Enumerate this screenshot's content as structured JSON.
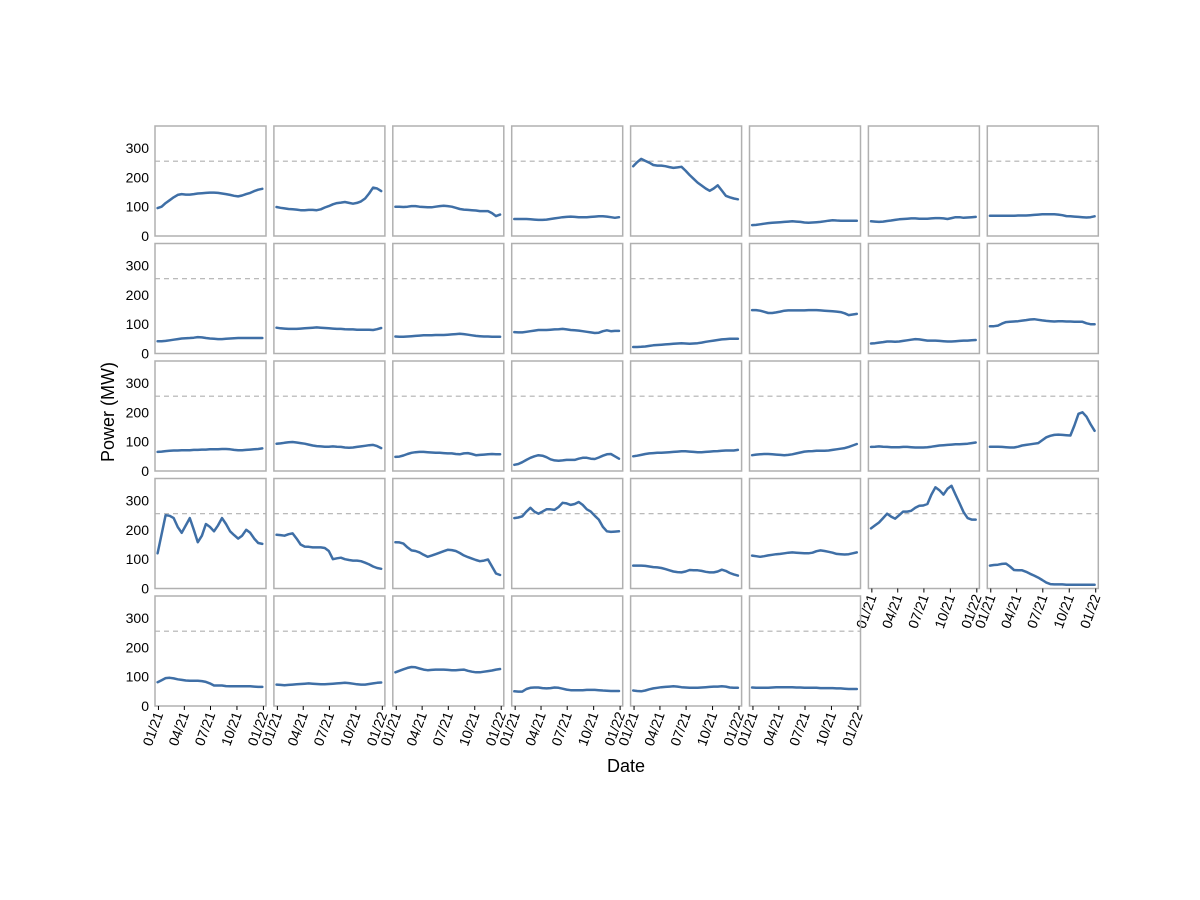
{
  "chart_data": {
    "type": "line",
    "layout": "small-multiples",
    "rows": 5,
    "cols": 8,
    "xlabel": "Date",
    "ylabel": "Power (MW)",
    "ylim": [
      0,
      375
    ],
    "yticks": [
      0,
      100,
      200,
      300
    ],
    "x_ticks": [
      "2021-01-01",
      "2021-04-01",
      "2021-07-01",
      "2021-10-01",
      "2022-01-01"
    ],
    "x_tick_labels": [
      "01/21",
      "04/21",
      "07/21",
      "10/21",
      "01/22"
    ],
    "xlim": [
      "2020-12-20",
      "2022-01-10"
    ],
    "x": [
      "2020-12-29",
      "2021-01-12",
      "2021-01-26",
      "2021-02-09",
      "2021-02-23",
      "2021-03-09",
      "2021-03-23",
      "2021-04-06",
      "2021-04-20",
      "2021-05-04",
      "2021-05-18",
      "2021-06-01",
      "2021-06-15",
      "2021-06-29",
      "2021-07-13",
      "2021-07-27",
      "2021-08-10",
      "2021-08-24",
      "2021-09-07",
      "2021-09-21",
      "2021-10-05",
      "2021-10-19",
      "2021-11-02",
      "2021-11-16",
      "2021-11-30",
      "2021-12-14",
      "2021-12-28"
    ],
    "reference_line": 255,
    "line_color": "#3f6fa6",
    "reference_color": "#b0b0b0",
    "panel_border_color": "#b0b0b0",
    "panels": [
      {
        "row": 0,
        "col": 0,
        "values": [
          95,
          100,
          112,
          122,
          132,
          140,
          143,
          141,
          141,
          143,
          145,
          146,
          147,
          148,
          148,
          147,
          145,
          143,
          140,
          137,
          135,
          138,
          143,
          147,
          153,
          158,
          161
        ]
      },
      {
        "row": 0,
        "col": 1,
        "values": [
          99,
          96,
          94,
          92,
          91,
          90,
          88,
          88,
          89,
          89,
          88,
          91,
          97,
          102,
          108,
          112,
          114,
          116,
          113,
          110,
          113,
          118,
          128,
          145,
          165,
          162,
          153
        ]
      },
      {
        "row": 0,
        "col": 2,
        "values": [
          100,
          100,
          99,
          100,
          102,
          102,
          100,
          99,
          98,
          98,
          100,
          102,
          103,
          102,
          100,
          96,
          92,
          90,
          89,
          88,
          87,
          85,
          85,
          85,
          78,
          68,
          73
        ]
      },
      {
        "row": 0,
        "col": 3,
        "values": [
          58,
          58,
          58,
          58,
          57,
          56,
          55,
          55,
          56,
          58,
          60,
          62,
          64,
          65,
          66,
          65,
          64,
          64,
          64,
          65,
          66,
          67,
          67,
          66,
          64,
          62,
          64
        ]
      },
      {
        "row": 0,
        "col": 4,
        "values": [
          238,
          252,
          263,
          256,
          250,
          242,
          240,
          240,
          238,
          235,
          232,
          234,
          236,
          223,
          208,
          195,
          182,
          172,
          162,
          154,
          162,
          173,
          155,
          137,
          132,
          128,
          125
        ]
      },
      {
        "row": 0,
        "col": 5,
        "values": [
          37,
          38,
          40,
          42,
          44,
          45,
          46,
          47,
          48,
          49,
          50,
          49,
          48,
          46,
          45,
          46,
          47,
          48,
          50,
          52,
          54,
          53,
          52,
          52,
          52,
          52,
          52
        ]
      },
      {
        "row": 0,
        "col": 6,
        "values": [
          50,
          49,
          48,
          49,
          51,
          53,
          55,
          57,
          58,
          59,
          60,
          60,
          59,
          59,
          59,
          60,
          61,
          61,
          60,
          58,
          61,
          64,
          64,
          62,
          63,
          64,
          65
        ]
      },
      {
        "row": 0,
        "col": 7,
        "values": [
          69,
          69,
          69,
          69,
          69,
          69,
          69,
          70,
          70,
          70,
          71,
          72,
          73,
          74,
          74,
          74,
          74,
          73,
          71,
          68,
          67,
          66,
          65,
          64,
          63,
          64,
          67
        ]
      },
      {
        "row": 1,
        "col": 0,
        "values": [
          42,
          42,
          43,
          45,
          47,
          49,
          51,
          52,
          53,
          54,
          56,
          55,
          53,
          51,
          50,
          49,
          49,
          50,
          51,
          52,
          53,
          53,
          53,
          53,
          53,
          53,
          53
        ]
      },
      {
        "row": 1,
        "col": 1,
        "values": [
          88,
          86,
          85,
          84,
          84,
          84,
          85,
          86,
          87,
          88,
          89,
          88,
          87,
          86,
          85,
          84,
          84,
          83,
          82,
          82,
          81,
          81,
          81,
          81,
          80,
          83,
          87
        ]
      },
      {
        "row": 1,
        "col": 2,
        "values": [
          58,
          57,
          57,
          58,
          59,
          60,
          61,
          62,
          62,
          62,
          63,
          63,
          63,
          64,
          65,
          66,
          67,
          66,
          64,
          62,
          60,
          59,
          58,
          58,
          57,
          57,
          57
        ]
      },
      {
        "row": 1,
        "col": 3,
        "values": [
          73,
          72,
          72,
          74,
          76,
          78,
          80,
          80,
          80,
          81,
          82,
          83,
          84,
          82,
          80,
          79,
          78,
          76,
          74,
          72,
          70,
          71,
          76,
          79,
          76,
          77,
          77
        ]
      },
      {
        "row": 1,
        "col": 4,
        "values": [
          22,
          22,
          23,
          24,
          26,
          28,
          29,
          30,
          31,
          32,
          33,
          34,
          35,
          34,
          33,
          34,
          35,
          37,
          40,
          42,
          44,
          46,
          48,
          49,
          50,
          50,
          50
        ]
      },
      {
        "row": 1,
        "col": 5,
        "values": [
          148,
          148,
          146,
          142,
          138,
          138,
          140,
          143,
          146,
          147,
          147,
          147,
          147,
          147,
          148,
          148,
          148,
          147,
          146,
          145,
          144,
          143,
          141,
          137,
          131,
          133,
          135
        ]
      },
      {
        "row": 1,
        "col": 6,
        "values": [
          34,
          35,
          37,
          39,
          41,
          41,
          40,
          41,
          43,
          45,
          47,
          49,
          48,
          46,
          44,
          44,
          44,
          43,
          42,
          41,
          41,
          42,
          43,
          44,
          44,
          45,
          46
        ]
      },
      {
        "row": 1,
        "col": 7,
        "values": [
          93,
          93,
          95,
          102,
          107,
          108,
          109,
          110,
          112,
          114,
          116,
          117,
          115,
          113,
          111,
          110,
          109,
          110,
          110,
          109,
          109,
          108,
          108,
          108,
          103,
          100,
          100
        ]
      },
      {
        "row": 2,
        "col": 0,
        "values": [
          65,
          66,
          68,
          69,
          70,
          70,
          71,
          71,
          71,
          72,
          72,
          73,
          73,
          74,
          74,
          74,
          75,
          75,
          74,
          72,
          71,
          71,
          72,
          73,
          74,
          75,
          77
        ]
      },
      {
        "row": 2,
        "col": 1,
        "values": [
          93,
          94,
          96,
          98,
          99,
          97,
          95,
          93,
          90,
          87,
          85,
          84,
          83,
          83,
          84,
          83,
          82,
          80,
          79,
          80,
          82,
          84,
          86,
          88,
          89,
          85,
          78
        ]
      },
      {
        "row": 2,
        "col": 2,
        "values": [
          48,
          49,
          53,
          58,
          62,
          64,
          65,
          65,
          64,
          63,
          62,
          62,
          61,
          60,
          60,
          58,
          57,
          60,
          61,
          58,
          54,
          55,
          56,
          57,
          58,
          57,
          57
        ]
      },
      {
        "row": 2,
        "col": 3,
        "values": [
          21,
          24,
          30,
          38,
          45,
          50,
          54,
          52,
          47,
          40,
          36,
          35,
          36,
          38,
          38,
          38,
          42,
          45,
          45,
          42,
          41,
          46,
          52,
          57,
          58,
          50,
          42
        ]
      },
      {
        "row": 2,
        "col": 4,
        "values": [
          50,
          52,
          55,
          58,
          60,
          61,
          62,
          62,
          63,
          64,
          65,
          66,
          67,
          67,
          66,
          65,
          64,
          64,
          65,
          66,
          67,
          68,
          69,
          70,
          70,
          70,
          72
        ]
      },
      {
        "row": 2,
        "col": 5,
        "values": [
          54,
          56,
          57,
          58,
          58,
          57,
          56,
          55,
          54,
          55,
          57,
          60,
          63,
          66,
          67,
          68,
          69,
          69,
          69,
          70,
          72,
          74,
          76,
          78,
          82,
          87,
          92
        ]
      },
      {
        "row": 2,
        "col": 6,
        "values": [
          82,
          83,
          84,
          83,
          82,
          81,
          81,
          81,
          82,
          82,
          81,
          80,
          80,
          80,
          81,
          83,
          85,
          87,
          88,
          89,
          90,
          91,
          91,
          92,
          93,
          95,
          97
        ]
      },
      {
        "row": 2,
        "col": 7,
        "values": [
          83,
          83,
          83,
          82,
          81,
          80,
          80,
          83,
          87,
          89,
          91,
          93,
          95,
          105,
          115,
          120,
          123,
          124,
          123,
          122,
          121,
          155,
          195,
          200,
          185,
          160,
          137
        ]
      },
      {
        "row": 3,
        "col": 0,
        "values": [
          120,
          185,
          250,
          248,
          240,
          210,
          190,
          215,
          240,
          200,
          158,
          180,
          220,
          210,
          195,
          215,
          240,
          220,
          195,
          182,
          170,
          180,
          200,
          190,
          170,
          155,
          152
        ]
      },
      {
        "row": 3,
        "col": 1,
        "values": [
          183,
          182,
          180,
          185,
          188,
          170,
          150,
          143,
          142,
          140,
          140,
          140,
          138,
          128,
          100,
          103,
          105,
          100,
          97,
          95,
          95,
          93,
          88,
          82,
          75,
          70,
          67
        ]
      },
      {
        "row": 3,
        "col": 2,
        "values": [
          158,
          157,
          153,
          140,
          130,
          128,
          123,
          115,
          108,
          112,
          117,
          122,
          127,
          132,
          131,
          128,
          121,
          113,
          107,
          102,
          97,
          93,
          95,
          99,
          75,
          51,
          46
        ]
      },
      {
        "row": 3,
        "col": 3,
        "values": [
          240,
          242,
          246,
          262,
          275,
          262,
          255,
          262,
          270,
          270,
          268,
          278,
          292,
          290,
          285,
          288,
          295,
          285,
          270,
          262,
          248,
          235,
          210,
          195,
          193,
          194,
          195
        ]
      },
      {
        "row": 3,
        "col": 4,
        "values": [
          78,
          78,
          78,
          77,
          75,
          73,
          72,
          70,
          66,
          62,
          58,
          56,
          55,
          58,
          63,
          62,
          62,
          60,
          57,
          55,
          55,
          58,
          64,
          60,
          53,
          48,
          44
        ]
      },
      {
        "row": 3,
        "col": 5,
        "values": [
          112,
          110,
          108,
          110,
          113,
          115,
          117,
          118,
          120,
          122,
          123,
          122,
          121,
          120,
          120,
          122,
          127,
          130,
          128,
          125,
          122,
          118,
          117,
          116,
          117,
          120,
          123
        ]
      },
      {
        "row": 3,
        "col": 6,
        "values": [
          205,
          215,
          225,
          240,
          255,
          245,
          238,
          250,
          262,
          262,
          265,
          275,
          282,
          283,
          288,
          320,
          345,
          335,
          320,
          340,
          350,
          320,
          290,
          260,
          240,
          235,
          235
        ]
      },
      {
        "row": 3,
        "col": 7,
        "values": [
          78,
          80,
          81,
          84,
          85,
          75,
          63,
          62,
          62,
          57,
          50,
          44,
          37,
          29,
          20,
          15,
          14,
          14,
          14,
          13,
          13,
          13,
          13,
          13,
          13,
          13,
          13
        ]
      },
      {
        "row": 4,
        "col": 0,
        "values": [
          81,
          88,
          95,
          96,
          94,
          91,
          89,
          87,
          86,
          86,
          86,
          85,
          82,
          77,
          70,
          70,
          70,
          68,
          67,
          67,
          67,
          67,
          67,
          67,
          66,
          65,
          65
        ]
      },
      {
        "row": 4,
        "col": 1,
        "values": [
          73,
          72,
          71,
          72,
          73,
          74,
          75,
          76,
          77,
          76,
          75,
          74,
          74,
          75,
          76,
          77,
          78,
          79,
          78,
          76,
          74,
          73,
          73,
          75,
          77,
          79,
          80
        ]
      },
      {
        "row": 4,
        "col": 2,
        "values": [
          115,
          120,
          125,
          130,
          133,
          132,
          128,
          124,
          122,
          123,
          124,
          124,
          124,
          123,
          122,
          122,
          123,
          124,
          120,
          117,
          115,
          115,
          117,
          119,
          121,
          124,
          126
        ]
      },
      {
        "row": 4,
        "col": 3,
        "values": [
          50,
          49,
          49,
          58,
          62,
          63,
          63,
          61,
          60,
          61,
          63,
          62,
          59,
          56,
          54,
          54,
          54,
          54,
          55,
          55,
          55,
          54,
          53,
          52,
          51,
          51,
          51
        ]
      },
      {
        "row": 4,
        "col": 4,
        "values": [
          53,
          51,
          50,
          53,
          57,
          60,
          62,
          64,
          65,
          66,
          67,
          66,
          64,
          63,
          62,
          62,
          62,
          63,
          64,
          65,
          66,
          66,
          67,
          66,
          63,
          62,
          62
        ]
      },
      {
        "row": 4,
        "col": 5,
        "values": [
          63,
          62,
          62,
          62,
          62,
          63,
          64,
          64,
          64,
          64,
          64,
          63,
          63,
          62,
          62,
          62,
          62,
          61,
          61,
          61,
          61,
          60,
          60,
          59,
          58,
          58,
          58
        ]
      }
    ]
  }
}
